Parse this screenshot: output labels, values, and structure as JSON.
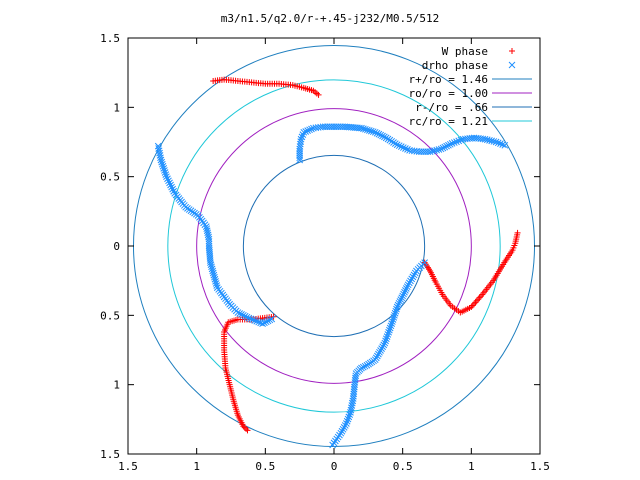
{
  "chart_data": {
    "type": "scatter",
    "title": "m3/n1.5/q2.0/r-+.45-j232/M0.5/512",
    "xlabel": "",
    "ylabel": "",
    "xlim": [
      -1.5,
      1.5
    ],
    "ylim": [
      -1.5,
      1.5
    ],
    "x_ticks": [
      {
        "value": -1.5,
        "label": "1.5"
      },
      {
        "value": -1.0,
        "label": "1"
      },
      {
        "value": -0.5,
        "label": "0.5"
      },
      {
        "value": 0.0,
        "label": "0"
      },
      {
        "value": 0.5,
        "label": "0.5"
      },
      {
        "value": 1.0,
        "label": "1"
      },
      {
        "value": 1.5,
        "label": "1.5"
      }
    ],
    "y_ticks": [
      {
        "value": 1.5,
        "label": "1.5"
      },
      {
        "value": 1.0,
        "label": "1"
      },
      {
        "value": 0.5,
        "label": "0.5"
      },
      {
        "value": 0.0,
        "label": "0"
      },
      {
        "value": -0.5,
        "label": "0.5"
      },
      {
        "value": -1.0,
        "label": "1"
      },
      {
        "value": -1.5,
        "label": "1.5"
      }
    ],
    "grid": false,
    "legend_position": "top-right",
    "circles": [
      {
        "name": "r+/ro = 1.46",
        "radius": 1.46,
        "color": "#1f7fbf"
      },
      {
        "name": "ro/ro = 1.00",
        "radius": 1.0,
        "color": "#a020c0"
      },
      {
        "name": "r-/ro = .66",
        "radius": 0.66,
        "color": "#1f6fb4"
      },
      {
        "name": "rc/ro = 1.21",
        "radius": 1.21,
        "color": "#20c8d8"
      }
    ],
    "series": [
      {
        "name": "W phase",
        "marker": "+",
        "color": "#ff0000",
        "arms": [
          [
            [
              -0.88,
              1.19
            ],
            [
              -0.8,
              1.2
            ],
            [
              -0.7,
              1.19
            ],
            [
              -0.6,
              1.18
            ],
            [
              -0.5,
              1.17
            ],
            [
              -0.4,
              1.17
            ],
            [
              -0.3,
              1.16
            ],
            [
              -0.22,
              1.14
            ],
            [
              -0.15,
              1.12
            ],
            [
              -0.1,
              1.08
            ]
          ],
          [
            [
              0.66,
              -0.12
            ],
            [
              0.7,
              -0.18
            ],
            [
              0.74,
              -0.26
            ],
            [
              0.79,
              -0.35
            ],
            [
              0.85,
              -0.43
            ],
            [
              0.92,
              -0.48
            ],
            [
              1.0,
              -0.44
            ],
            [
              1.08,
              -0.35
            ],
            [
              1.16,
              -0.25
            ],
            [
              1.24,
              -0.12
            ],
            [
              1.3,
              -0.03
            ],
            [
              1.32,
              0.02
            ],
            [
              1.34,
              0.11
            ]
          ],
          [
            [
              -0.44,
              -0.51
            ],
            [
              -0.52,
              -0.52
            ],
            [
              -0.6,
              -0.53
            ],
            [
              -0.7,
              -0.53
            ],
            [
              -0.77,
              -0.55
            ],
            [
              -0.8,
              -0.62
            ],
            [
              -0.8,
              -0.75
            ],
            [
              -0.79,
              -0.88
            ],
            [
              -0.76,
              -1.0
            ],
            [
              -0.73,
              -1.12
            ],
            [
              -0.7,
              -1.22
            ],
            [
              -0.66,
              -1.3
            ],
            [
              -0.62,
              -1.34
            ]
          ]
        ]
      },
      {
        "name": "drho phase",
        "marker": "x",
        "color": "#1f90ff",
        "arms": [
          [
            [
              -0.25,
              0.62
            ],
            [
              -0.25,
              0.7
            ],
            [
              -0.24,
              0.77
            ],
            [
              -0.22,
              0.82
            ],
            [
              -0.15,
              0.85
            ],
            [
              -0.08,
              0.86
            ],
            [
              0.0,
              0.86
            ],
            [
              0.08,
              0.86
            ],
            [
              0.2,
              0.85
            ],
            [
              0.3,
              0.82
            ],
            [
              0.38,
              0.78
            ],
            [
              0.46,
              0.73
            ],
            [
              0.55,
              0.69
            ],
            [
              0.62,
              0.68
            ],
            [
              0.7,
              0.68
            ],
            [
              0.78,
              0.7
            ],
            [
              0.86,
              0.74
            ],
            [
              0.94,
              0.77
            ],
            [
              1.02,
              0.78
            ],
            [
              1.1,
              0.77
            ],
            [
              1.18,
              0.75
            ],
            [
              1.26,
              0.72
            ]
          ],
          [
            [
              -1.28,
              0.72
            ],
            [
              -1.26,
              0.62
            ],
            [
              -1.22,
              0.5
            ],
            [
              -1.16,
              0.38
            ],
            [
              -1.08,
              0.28
            ],
            [
              -0.99,
              0.22
            ],
            [
              -0.93,
              0.14
            ],
            [
              -0.91,
              0.05
            ],
            [
              -0.91,
              0.0
            ],
            [
              -0.9,
              -0.12
            ],
            [
              -0.85,
              -0.3
            ],
            [
              -0.76,
              -0.42
            ],
            [
              -0.7,
              -0.48
            ],
            [
              -0.62,
              -0.52
            ],
            [
              -0.52,
              -0.56
            ],
            [
              -0.44,
              -0.52
            ]
          ],
          [
            [
              0.66,
              -0.12
            ],
            [
              0.6,
              -0.18
            ],
            [
              0.54,
              -0.28
            ],
            [
              0.5,
              -0.36
            ],
            [
              0.46,
              -0.44
            ],
            [
              0.42,
              -0.56
            ],
            [
              0.37,
              -0.7
            ],
            [
              0.3,
              -0.82
            ],
            [
              0.24,
              -0.86
            ],
            [
              0.2,
              -0.88
            ],
            [
              0.16,
              -0.92
            ],
            [
              0.15,
              -1.0
            ],
            [
              0.14,
              -1.1
            ],
            [
              0.12,
              -1.2
            ],
            [
              0.09,
              -1.28
            ],
            [
              0.05,
              -1.35
            ],
            [
              0.0,
              -1.42
            ],
            [
              -0.02,
              -1.45
            ]
          ]
        ]
      }
    ]
  }
}
